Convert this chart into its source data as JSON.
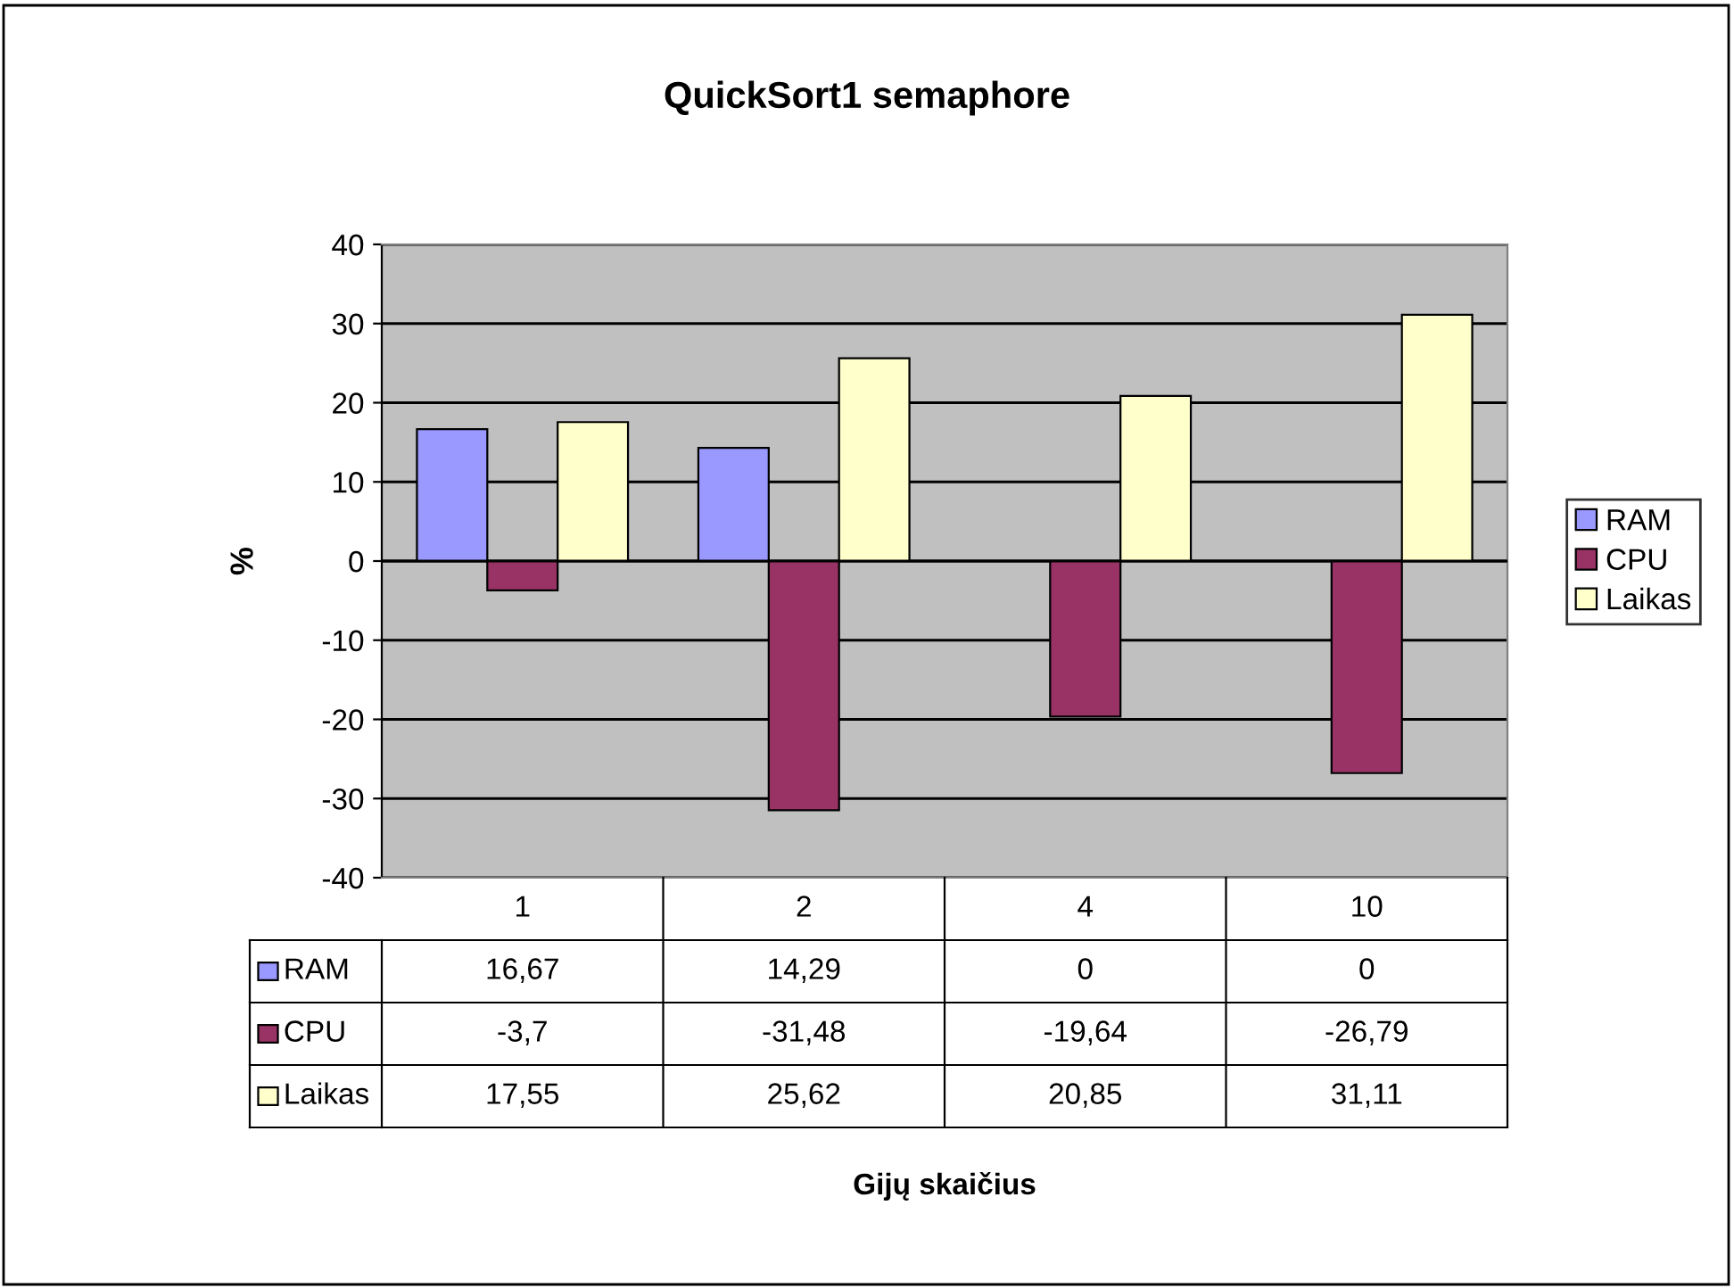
{
  "chart_data": {
    "type": "bar",
    "title": "QuickSort1 semaphore",
    "annotations": [
      "Gijų skaičius"
    ],
    "ylabel": "%",
    "categories": [
      "1",
      "2",
      "4",
      "10"
    ],
    "series": [
      {
        "name": "RAM",
        "color": "#9999ff",
        "values": [
          16.67,
          14.29,
          0,
          0
        ],
        "value_labels": [
          "16,67",
          "14,29",
          "0",
          "0"
        ]
      },
      {
        "name": "CPU",
        "color": "#993366",
        "values": [
          -3.7,
          -31.48,
          -19.64,
          -26.79
        ],
        "value_labels": [
          "-3,7",
          "-31,48",
          "-19,64",
          "-26,79"
        ]
      },
      {
        "name": "Laikas",
        "color": "#ffffcc",
        "values": [
          17.55,
          25.62,
          20.85,
          31.11
        ],
        "value_labels": [
          "17,55",
          "25,62",
          "20,85",
          "31,11"
        ]
      }
    ],
    "ylim": [
      -40,
      40
    ],
    "yticks": [
      -40,
      -30,
      -20,
      -10,
      0,
      10,
      20,
      30,
      40
    ],
    "grid": "y",
    "legend": "right"
  }
}
